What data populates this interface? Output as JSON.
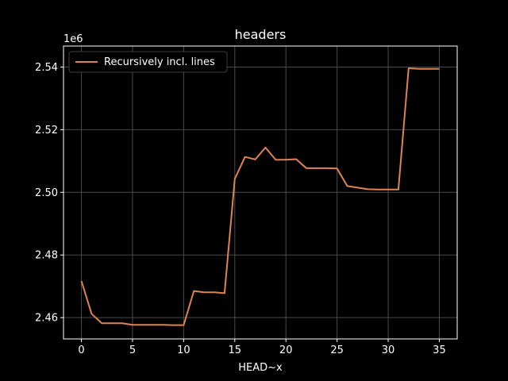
{
  "chart_data": {
    "type": "line",
    "title": "headers",
    "xlabel": "HEAD~x",
    "ylabel": "",
    "y_offset_label": "1e6",
    "xlim": [
      -1.75,
      36.75
    ],
    "ylim": [
      2.4532,
      2.5467
    ],
    "x_ticks": [
      0,
      5,
      10,
      15,
      20,
      25,
      30,
      35
    ],
    "x_tick_labels": [
      "0",
      "5",
      "10",
      "15",
      "20",
      "25",
      "30",
      "35"
    ],
    "y_ticks": [
      2.46,
      2.48,
      2.5,
      2.52,
      2.54
    ],
    "y_tick_labels": [
      "2.46",
      "2.48",
      "2.50",
      "2.52",
      "2.54"
    ],
    "grid": true,
    "legend_position": "top-left",
    "series": [
      {
        "name": "Recursively incl. lines",
        "color": "#dd8452",
        "x": [
          0,
          1,
          2,
          3,
          4,
          5,
          6,
          7,
          8,
          9,
          10,
          11,
          12,
          13,
          14,
          15,
          16,
          17,
          18,
          19,
          20,
          21,
          22,
          23,
          24,
          25,
          26,
          27,
          28,
          29,
          30,
          31,
          32,
          33,
          34,
          35
        ],
        "y": [
          2.4717,
          2.4612,
          2.4582,
          2.4582,
          2.4582,
          2.4577,
          2.4577,
          2.4577,
          2.4577,
          2.4576,
          2.4576,
          2.4685,
          2.4681,
          2.4681,
          2.4678,
          2.5043,
          2.5113,
          2.5105,
          2.5143,
          2.5104,
          2.5104,
          2.5106,
          2.5077,
          2.5077,
          2.5077,
          2.5076,
          2.502,
          2.5015,
          2.501,
          2.5009,
          2.5009,
          2.5009,
          2.5396,
          2.5394,
          2.5394,
          2.5394
        ]
      }
    ]
  }
}
